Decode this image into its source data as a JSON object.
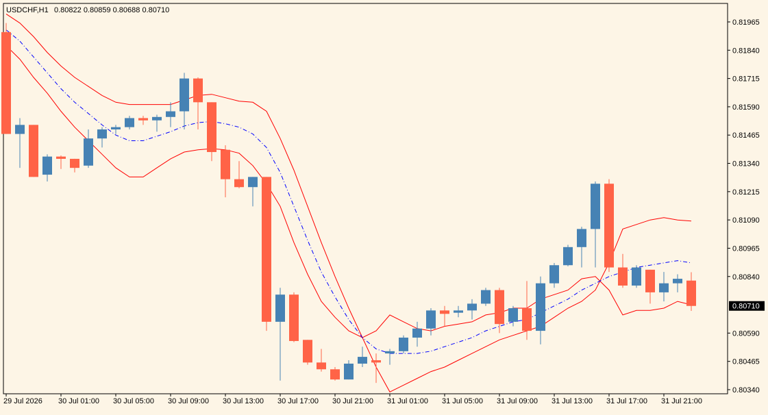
{
  "header": {
    "symbol": "USDCHF,H1",
    "ohlc": "0.80822 0.80859 0.80688 0.80710"
  },
  "colors": {
    "background": "#fdf5e6",
    "bull": "#4682b4",
    "bear": "#ff6347",
    "band_line": "#ff0000",
    "mid_line": "#0000ff",
    "price_tag_bg": "#000000",
    "price_tag_text": "#ffffff",
    "axis": "#000000"
  },
  "chart_data": {
    "type": "candlestick",
    "symbol": "USDCHF",
    "timeframe": "H1",
    "ylim": [
      0.8034,
      0.8202
    ],
    "y_ticks": [
      "0.81965",
      "0.81840",
      "0.81715",
      "0.81590",
      "0.81465",
      "0.81340",
      "0.81215",
      "0.81090",
      "0.80965",
      "0.80840",
      "0.80590",
      "0.80465",
      "0.80340"
    ],
    "current_price": "0.80710",
    "x_tick_labels": [
      {
        "label": "29 Jul 2026",
        "index": 0
      },
      {
        "label": "30 Jul 01:00",
        "index": 4
      },
      {
        "label": "30 Jul 05:00",
        "index": 8
      },
      {
        "label": "30 Jul 09:00",
        "index": 12
      },
      {
        "label": "30 Jul 13:00",
        "index": 16
      },
      {
        "label": "30 Jul 17:00",
        "index": 20
      },
      {
        "label": "30 Jul 21:00",
        "index": 24
      },
      {
        "label": "31 Jul 01:00",
        "index": 28
      },
      {
        "label": "31 Jul 05:00",
        "index": 32
      },
      {
        "label": "31 Jul 09:00",
        "index": 36
      },
      {
        "label": "31 Jul 13:00",
        "index": 40
      },
      {
        "label": "31 Jul 17:00",
        "index": 44
      },
      {
        "label": "31 Jul 21:00",
        "index": 48
      }
    ],
    "candles": [
      {
        "o": 0.8192,
        "h": 0.8196,
        "l": 0.8147,
        "c": 0.8147
      },
      {
        "o": 0.8147,
        "h": 0.8154,
        "l": 0.8132,
        "c": 0.8151
      },
      {
        "o": 0.8151,
        "h": 0.8151,
        "l": 0.8128,
        "c": 0.8128
      },
      {
        "o": 0.8129,
        "h": 0.8138,
        "l": 0.8126,
        "c": 0.8137
      },
      {
        "o": 0.8137,
        "h": 0.81375,
        "l": 0.81315,
        "c": 0.8136
      },
      {
        "o": 0.8136,
        "h": 0.8136,
        "l": 0.813,
        "c": 0.8132
      },
      {
        "o": 0.8133,
        "h": 0.8149,
        "l": 0.8132,
        "c": 0.8145
      },
      {
        "o": 0.8145,
        "h": 0.815,
        "l": 0.8141,
        "c": 0.8149
      },
      {
        "o": 0.8149,
        "h": 0.8151,
        "l": 0.8147,
        "c": 0.815
      },
      {
        "o": 0.815,
        "h": 0.8155,
        "l": 0.8149,
        "c": 0.8154
      },
      {
        "o": 0.8154,
        "h": 0.8155,
        "l": 0.8151,
        "c": 0.8153
      },
      {
        "o": 0.8153,
        "h": 0.81555,
        "l": 0.8148,
        "c": 0.81545
      },
      {
        "o": 0.81545,
        "h": 0.8161,
        "l": 0.815,
        "c": 0.8157
      },
      {
        "o": 0.8157,
        "h": 0.8174,
        "l": 0.8149,
        "c": 0.81715
      },
      {
        "o": 0.81715,
        "h": 0.8172,
        "l": 0.8149,
        "c": 0.8161
      },
      {
        "o": 0.8161,
        "h": 0.8161,
        "l": 0.8135,
        "c": 0.8139
      },
      {
        "o": 0.814,
        "h": 0.8142,
        "l": 0.8119,
        "c": 0.8127
      },
      {
        "o": 0.8127,
        "h": 0.8135,
        "l": 0.8123,
        "c": 0.81235
      },
      {
        "o": 0.81235,
        "h": 0.8128,
        "l": 0.8115,
        "c": 0.8128
      },
      {
        "o": 0.8128,
        "h": 0.8128,
        "l": 0.806,
        "c": 0.8064
      },
      {
        "o": 0.8064,
        "h": 0.8079,
        "l": 0.8038,
        "c": 0.8076
      },
      {
        "o": 0.8076,
        "h": 0.8077,
        "l": 0.8055,
        "c": 0.80555
      },
      {
        "o": 0.8056,
        "h": 0.8056,
        "l": 0.8045,
        "c": 0.8046
      },
      {
        "o": 0.8046,
        "h": 0.8052,
        "l": 0.8042,
        "c": 0.8043
      },
      {
        "o": 0.8043,
        "h": 0.8044,
        "l": 0.8038,
        "c": 0.80385
      },
      {
        "o": 0.80385,
        "h": 0.8047,
        "l": 0.80385,
        "c": 0.80455
      },
      {
        "o": 0.80455,
        "h": 0.8053,
        "l": 0.8044,
        "c": 0.80485
      },
      {
        "o": 0.8047,
        "h": 0.805,
        "l": 0.8037,
        "c": 0.8046
      },
      {
        "o": 0.805,
        "h": 0.8052,
        "l": 0.8045,
        "c": 0.8051
      },
      {
        "o": 0.8051,
        "h": 0.8058,
        "l": 0.805,
        "c": 0.8057
      },
      {
        "o": 0.8057,
        "h": 0.8064,
        "l": 0.8053,
        "c": 0.8061
      },
      {
        "o": 0.8061,
        "h": 0.807,
        "l": 0.8058,
        "c": 0.8069
      },
      {
        "o": 0.8069,
        "h": 0.8071,
        "l": 0.8062,
        "c": 0.80675
      },
      {
        "o": 0.8068,
        "h": 0.8071,
        "l": 0.8066,
        "c": 0.8069
      },
      {
        "o": 0.8069,
        "h": 0.8074,
        "l": 0.8065,
        "c": 0.8072
      },
      {
        "o": 0.8072,
        "h": 0.8079,
        "l": 0.8071,
        "c": 0.8078
      },
      {
        "o": 0.8078,
        "h": 0.8079,
        "l": 0.8059,
        "c": 0.8063
      },
      {
        "o": 0.8064,
        "h": 0.8071,
        "l": 0.8062,
        "c": 0.807
      },
      {
        "o": 0.807,
        "h": 0.8082,
        "l": 0.8056,
        "c": 0.806
      },
      {
        "o": 0.806,
        "h": 0.8084,
        "l": 0.8054,
        "c": 0.8081
      },
      {
        "o": 0.8081,
        "h": 0.809,
        "l": 0.8079,
        "c": 0.8089
      },
      {
        "o": 0.8089,
        "h": 0.8098,
        "l": 0.80885,
        "c": 0.8097
      },
      {
        "o": 0.8097,
        "h": 0.8106,
        "l": 0.8088,
        "c": 0.8105
      },
      {
        "o": 0.8105,
        "h": 0.8126,
        "l": 0.8088,
        "c": 0.8125
      },
      {
        "o": 0.8125,
        "h": 0.8127,
        "l": 0.8086,
        "c": 0.8088
      },
      {
        "o": 0.8088,
        "h": 0.8094,
        "l": 0.8079,
        "c": 0.808
      },
      {
        "o": 0.808,
        "h": 0.8089,
        "l": 0.8079,
        "c": 0.8088
      },
      {
        "o": 0.8087,
        "h": 0.8087,
        "l": 0.8072,
        "c": 0.8077
      },
      {
        "o": 0.8077,
        "h": 0.8086,
        "l": 0.8073,
        "c": 0.8081
      },
      {
        "o": 0.8081,
        "h": 0.8085,
        "l": 0.8077,
        "c": 0.8083
      },
      {
        "o": 0.80822,
        "h": 0.80859,
        "l": 0.80688,
        "c": 0.8071
      }
    ],
    "bands": {
      "upper": [
        0.82,
        0.8196,
        0.819,
        0.8183,
        0.8177,
        0.8172,
        0.8168,
        0.8164,
        0.8161,
        0.816,
        0.816,
        0.816,
        0.816,
        0.8162,
        0.8164,
        0.81645,
        0.8163,
        0.81615,
        0.8161,
        0.8157,
        0.8145,
        0.8131,
        0.8115,
        0.8099,
        0.8084,
        0.807,
        0.8057,
        0.8044,
        0.8033,
        0.8036,
        0.8039,
        0.8042,
        0.8044,
        0.8047,
        0.805,
        0.8053,
        0.8056,
        0.8058,
        0.806,
        0.8062,
        0.8066,
        0.807,
        0.8073,
        0.8078,
        0.809,
        0.8105,
        0.8107,
        0.8109,
        0.811,
        0.8109,
        0.81085
      ],
      "middle": [
        0.8193,
        0.8188,
        0.8181,
        0.8174,
        0.8167,
        0.8161,
        0.8156,
        0.8151,
        0.81465,
        0.8144,
        0.8144,
        0.8146,
        0.8148,
        0.81505,
        0.8152,
        0.81525,
        0.81515,
        0.815,
        0.8147,
        0.8141,
        0.813,
        0.8115,
        0.81,
        0.8086,
        0.8075,
        0.8065,
        0.8057,
        0.8052,
        0.805,
        0.805,
        0.805,
        0.8051,
        0.8053,
        0.8055,
        0.8057,
        0.806,
        0.8062,
        0.8064,
        0.8065,
        0.8068,
        0.8071,
        0.8074,
        0.8078,
        0.8081,
        0.8084,
        0.8086,
        0.8088,
        0.8089,
        0.809,
        0.8091,
        0.809
      ]
    }
  }
}
